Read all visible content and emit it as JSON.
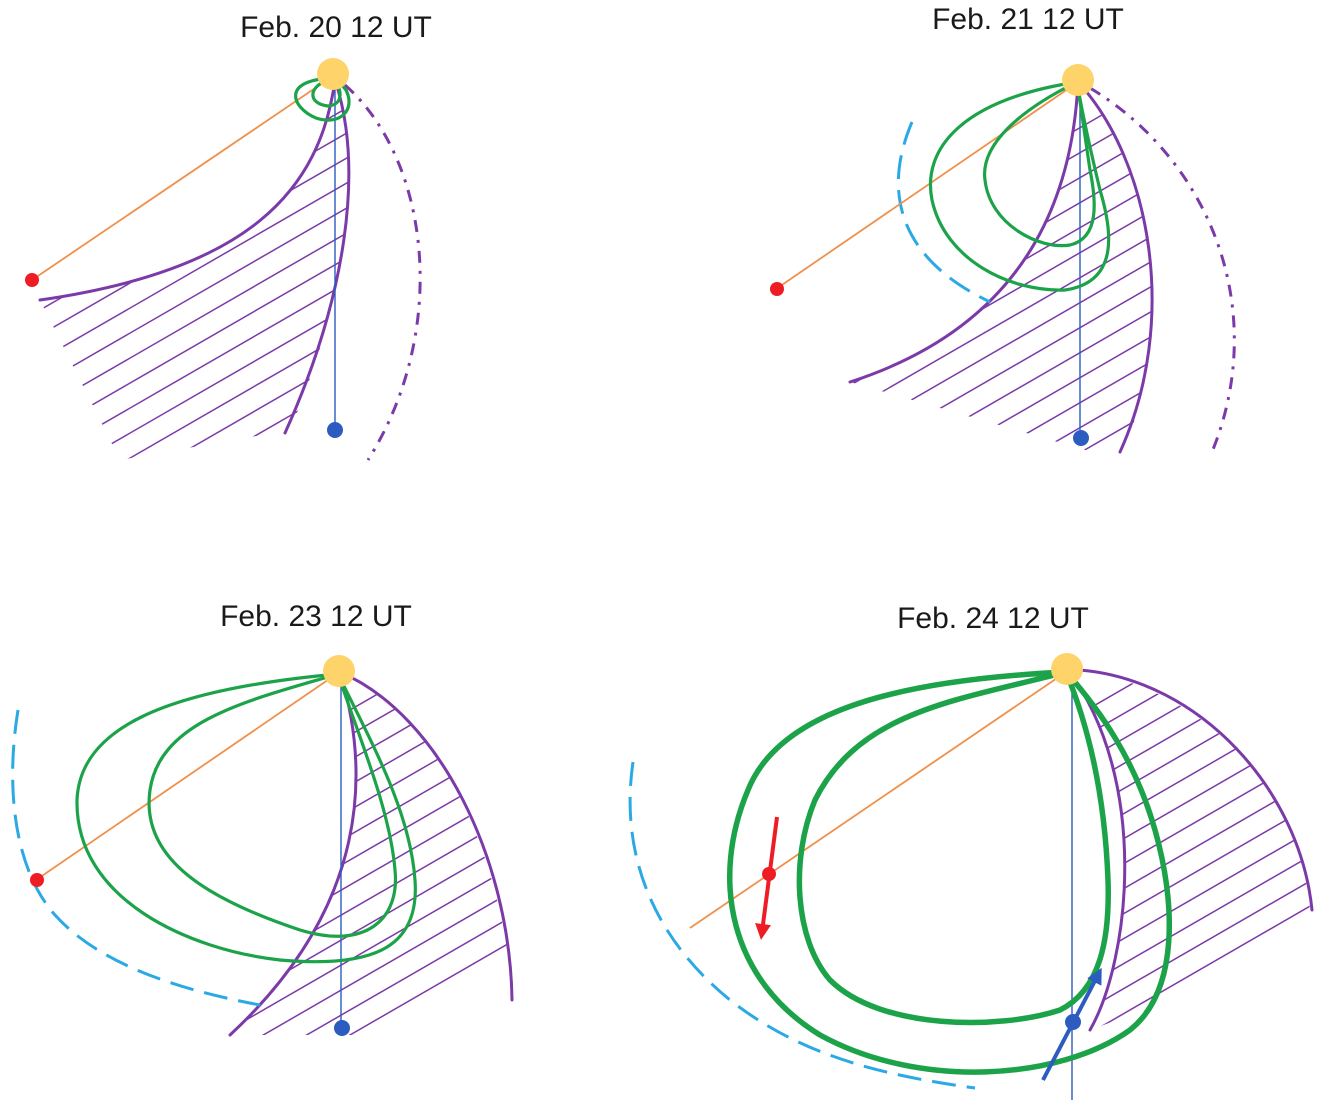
{
  "panels": [
    {
      "title": "Feb. 20 12 UT"
    },
    {
      "title": "Feb. 21 12 UT"
    },
    {
      "title": "Feb. 23 12 UT"
    },
    {
      "title": "Feb. 24  12 UT"
    }
  ],
  "colors": {
    "sun": "#fdd36a",
    "spacecraft_a": "#ee1c24",
    "spacecraft_b": "#2c5cc0",
    "flux_rope": "#1ca349",
    "stream_interface": "#7b3aa8",
    "shock": "#2aa9e4",
    "line_of_sight_a": "#f0904a",
    "line_of_sight_b": "#2c5cc0"
  }
}
